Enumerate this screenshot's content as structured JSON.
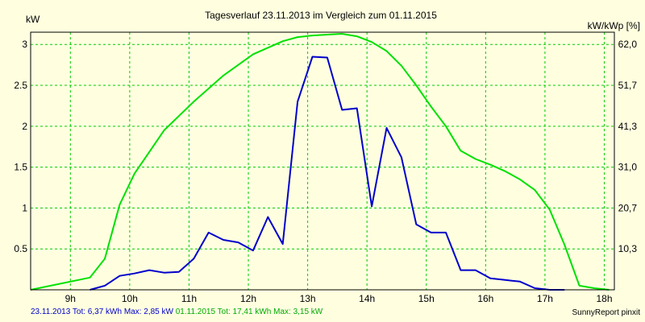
{
  "chart_data": {
    "type": "line",
    "title": "Tagesverlauf 23.11.2013 im Vergleich zum 01.11.2015",
    "ylabel_left": "kW",
    "ylabel_right": "kW/kWp [%]",
    "xlim": [
      8.33,
      18.17
    ],
    "ylim": [
      0,
      3.15
    ],
    "x_ticks": [
      9,
      10,
      11,
      12,
      13,
      14,
      15,
      16,
      17,
      18
    ],
    "x_tick_labels": [
      "9h",
      "10h",
      "11h",
      "12h",
      "13h",
      "14h",
      "15h",
      "16h",
      "17h",
      "18h"
    ],
    "y_ticks": [
      0.5,
      1,
      1.5,
      2,
      2.5,
      3
    ],
    "y_tick_labels": [
      "0.5",
      "1",
      "1.5",
      "2",
      "2.5",
      "3"
    ],
    "y2_ticks": [
      0.5,
      1,
      1.5,
      2,
      2.5,
      3
    ],
    "y2_tick_labels": [
      "10,3",
      "20,7",
      "31,0",
      "41,3",
      "51,7",
      "62,0"
    ],
    "grid": true,
    "series": [
      {
        "name": "23.11.2013",
        "color": "#0000cc",
        "x": [
          9.33,
          9.58,
          9.83,
          10.08,
          10.33,
          10.58,
          10.83,
          11.08,
          11.33,
          11.58,
          11.83,
          12.08,
          12.33,
          12.58,
          12.83,
          13.08,
          13.33,
          13.58,
          13.83,
          14.08,
          14.33,
          14.58,
          14.83,
          15.08,
          15.33,
          15.58,
          15.83,
          16.08,
          16.33,
          16.58,
          16.83,
          17.08,
          17.33
        ],
        "y": [
          0.0,
          0.05,
          0.17,
          0.2,
          0.24,
          0.21,
          0.22,
          0.38,
          0.7,
          0.61,
          0.58,
          0.48,
          0.89,
          0.56,
          2.3,
          2.85,
          2.84,
          2.2,
          2.22,
          1.02,
          1.98,
          1.62,
          0.8,
          0.7,
          0.7,
          0.24,
          0.24,
          0.14,
          0.12,
          0.1,
          0.02,
          0.0,
          0.0
        ]
      },
      {
        "name": "01.11.2015",
        "color": "#00e000",
        "x": [
          8.33,
          9.33,
          9.58,
          9.83,
          10.08,
          10.58,
          11.08,
          11.58,
          12.08,
          12.58,
          12.83,
          13.08,
          13.33,
          13.58,
          13.83,
          14.08,
          14.33,
          14.58,
          14.83,
          15.08,
          15.33,
          15.58,
          15.83,
          16.08,
          16.33,
          16.58,
          16.83,
          17.08,
          17.33,
          17.58,
          17.83,
          18.08
        ],
        "y": [
          0.0,
          0.15,
          0.38,
          1.04,
          1.42,
          1.95,
          2.3,
          2.62,
          2.88,
          3.04,
          3.09,
          3.11,
          3.12,
          3.13,
          3.1,
          3.03,
          2.92,
          2.74,
          2.5,
          2.24,
          2.0,
          1.7,
          1.6,
          1.53,
          1.45,
          1.35,
          1.22,
          0.98,
          0.55,
          0.05,
          0.02,
          0.0
        ]
      }
    ]
  },
  "footer": {
    "series1_text": "23.11.2013 Tot: 6,37 kWh Max: 2,85 kW",
    "series2_text": "01.11.2015 Tot: 17,41 kWh Max: 3,15 kW",
    "credit": "SunnyReport pinxit"
  }
}
